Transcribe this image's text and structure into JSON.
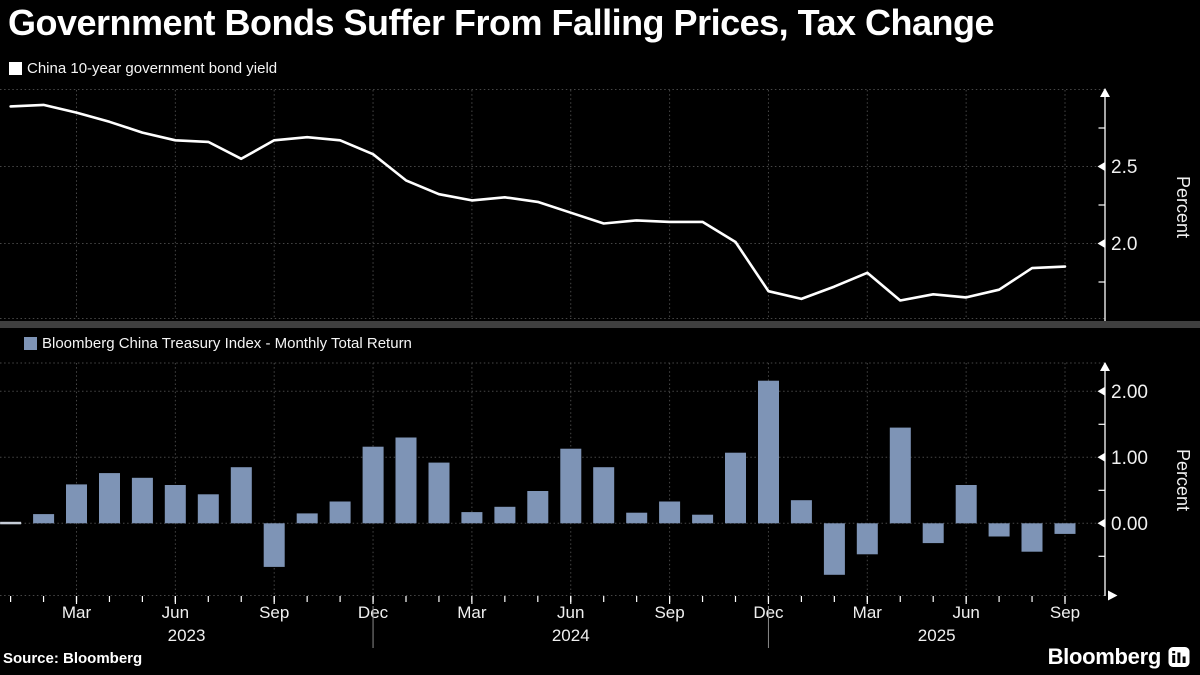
{
  "title": "Government Bonds Suffer From Falling Prices, Tax Change",
  "source": "Source:  Bloomberg",
  "branding": {
    "logo_text": "Bloomberg",
    "logo_icon": "bloomberg-chart-icon"
  },
  "colors": {
    "background": "#000000",
    "text": "#ffffff",
    "line": "#ffffff",
    "bar": "#7e94b6",
    "near_zero_bar": "#c6cdd8",
    "grid": "#474747",
    "separator": "#3f3f3f",
    "axis": "#f0f0f0",
    "year_divider": "#8a8a8a"
  },
  "categories": [
    "Jan 2023",
    "Feb 2023",
    "Mar 2023",
    "Apr 2023",
    "May 2023",
    "Jun 2023",
    "Jul 2023",
    "Aug 2023",
    "Sep 2023",
    "Oct 2023",
    "Nov 2023",
    "Dec 2023",
    "Jan 2024",
    "Feb 2024",
    "Mar 2024",
    "Apr 2024",
    "May 2024",
    "Jun 2024",
    "Jul 2024",
    "Aug 2024",
    "Sep 2024",
    "Oct 2024",
    "Nov 2024",
    "Dec 2024",
    "Jan 2025",
    "Feb 2025",
    "Mar 2025",
    "Apr 2025",
    "May 2025",
    "Jun 2025",
    "Jul 2025",
    "Aug 2025",
    "Sep 2025"
  ],
  "x_axis": {
    "quarter_ticks": [
      {
        "i": 2,
        "label": "Mar"
      },
      {
        "i": 5,
        "label": "Jun"
      },
      {
        "i": 8,
        "label": "Sep"
      },
      {
        "i": 11,
        "label": "Dec"
      },
      {
        "i": 14,
        "label": "Mar"
      },
      {
        "i": 17,
        "label": "Jun"
      },
      {
        "i": 20,
        "label": "Sep"
      },
      {
        "i": 23,
        "label": "Dec"
      },
      {
        "i": 26,
        "label": "Mar"
      },
      {
        "i": 29,
        "label": "Jun"
      },
      {
        "i": 32,
        "label": "Sep"
      }
    ],
    "years": [
      "2023",
      "2024",
      "2025"
    ],
    "year_divider_indices": [
      11,
      23
    ]
  },
  "chart_data": [
    {
      "type": "line",
      "title": "China 10-year government bond yield",
      "ylabel": "Percent",
      "ylim": [
        1.5,
        3.0
      ],
      "gridlines": [
        3.0,
        2.5,
        2.0
      ],
      "ytick_labels": [
        {
          "v": 2.5,
          "t": "2.5"
        },
        {
          "v": 2.0,
          "t": "2.0"
        }
      ],
      "minor_ticks": [
        2.75,
        2.25,
        1.75
      ],
      "legend_position": "top-left",
      "values": [
        2.89,
        2.9,
        2.85,
        2.79,
        2.72,
        2.67,
        2.66,
        2.55,
        2.67,
        2.69,
        2.67,
        2.58,
        2.41,
        2.32,
        2.28,
        2.3,
        2.27,
        2.2,
        2.13,
        2.15,
        2.14,
        2.14,
        2.01,
        1.69,
        1.64,
        1.72,
        1.81,
        1.63,
        1.67,
        1.65,
        1.7,
        1.84,
        1.85
      ]
    },
    {
      "type": "bar",
      "title": "Bloomberg China Treasury Index - Monthly Total Return",
      "ylabel": "Percent",
      "ylim": [
        -1.1,
        2.43
      ],
      "gridlines": [
        2.0,
        1.0,
        0.0
      ],
      "ytick_labels": [
        {
          "v": 2.0,
          "t": "2.00"
        },
        {
          "v": 1.0,
          "t": "1.00"
        },
        {
          "v": 0.0,
          "t": "0.00"
        }
      ],
      "minor_ticks": [
        1.5,
        0.5,
        -0.5
      ],
      "legend_position": "top-left",
      "values": [
        0.0,
        0.14,
        0.59,
        0.76,
        0.69,
        0.58,
        0.44,
        0.85,
        -0.66,
        0.15,
        0.33,
        1.16,
        1.3,
        0.92,
        0.17,
        0.25,
        0.49,
        1.13,
        0.85,
        0.16,
        0.33,
        0.13,
        1.07,
        2.16,
        0.35,
        -0.78,
        -0.47,
        1.45,
        -0.3,
        0.58,
        -0.2,
        -0.43,
        -0.16
      ]
    }
  ]
}
